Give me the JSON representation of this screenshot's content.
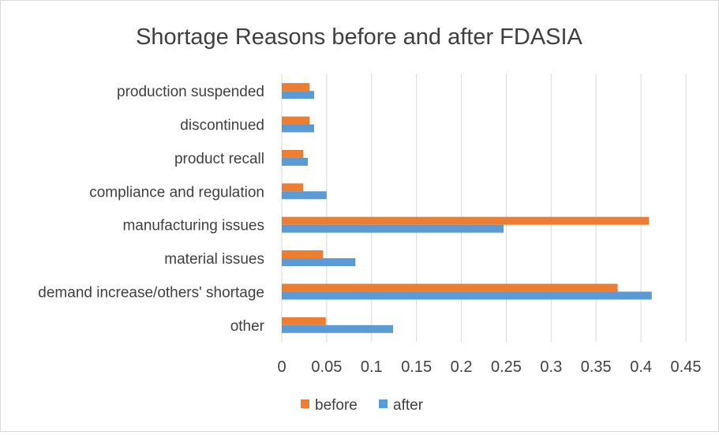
{
  "chart_data": {
    "type": "bar",
    "orientation": "horizontal",
    "title": "Shortage Reasons before and after FDASIA",
    "xlabel": "",
    "ylabel": "",
    "categories": [
      "production suspended",
      "discontinued",
      "product recall",
      "compliance and regulation",
      "manufacturing issues",
      "material issues",
      "demand increase/others' shortage",
      "other"
    ],
    "series": [
      {
        "name": "before",
        "color": "#ed7d31",
        "values": [
          0.031,
          0.031,
          0.024,
          0.024,
          0.409,
          0.046,
          0.374,
          0.049
        ]
      },
      {
        "name": "after",
        "color": "#5b9bd5",
        "values": [
          0.036,
          0.036,
          0.029,
          0.05,
          0.247,
          0.082,
          0.412,
          0.124
        ]
      }
    ],
    "xlim": [
      0,
      0.45
    ],
    "xticks": [
      "0",
      "0.05",
      "0.1",
      "0.15",
      "0.2",
      "0.25",
      "0.3",
      "0.35",
      "0.4",
      "0.45"
    ],
    "grid": true,
    "legend_position": "bottom"
  }
}
